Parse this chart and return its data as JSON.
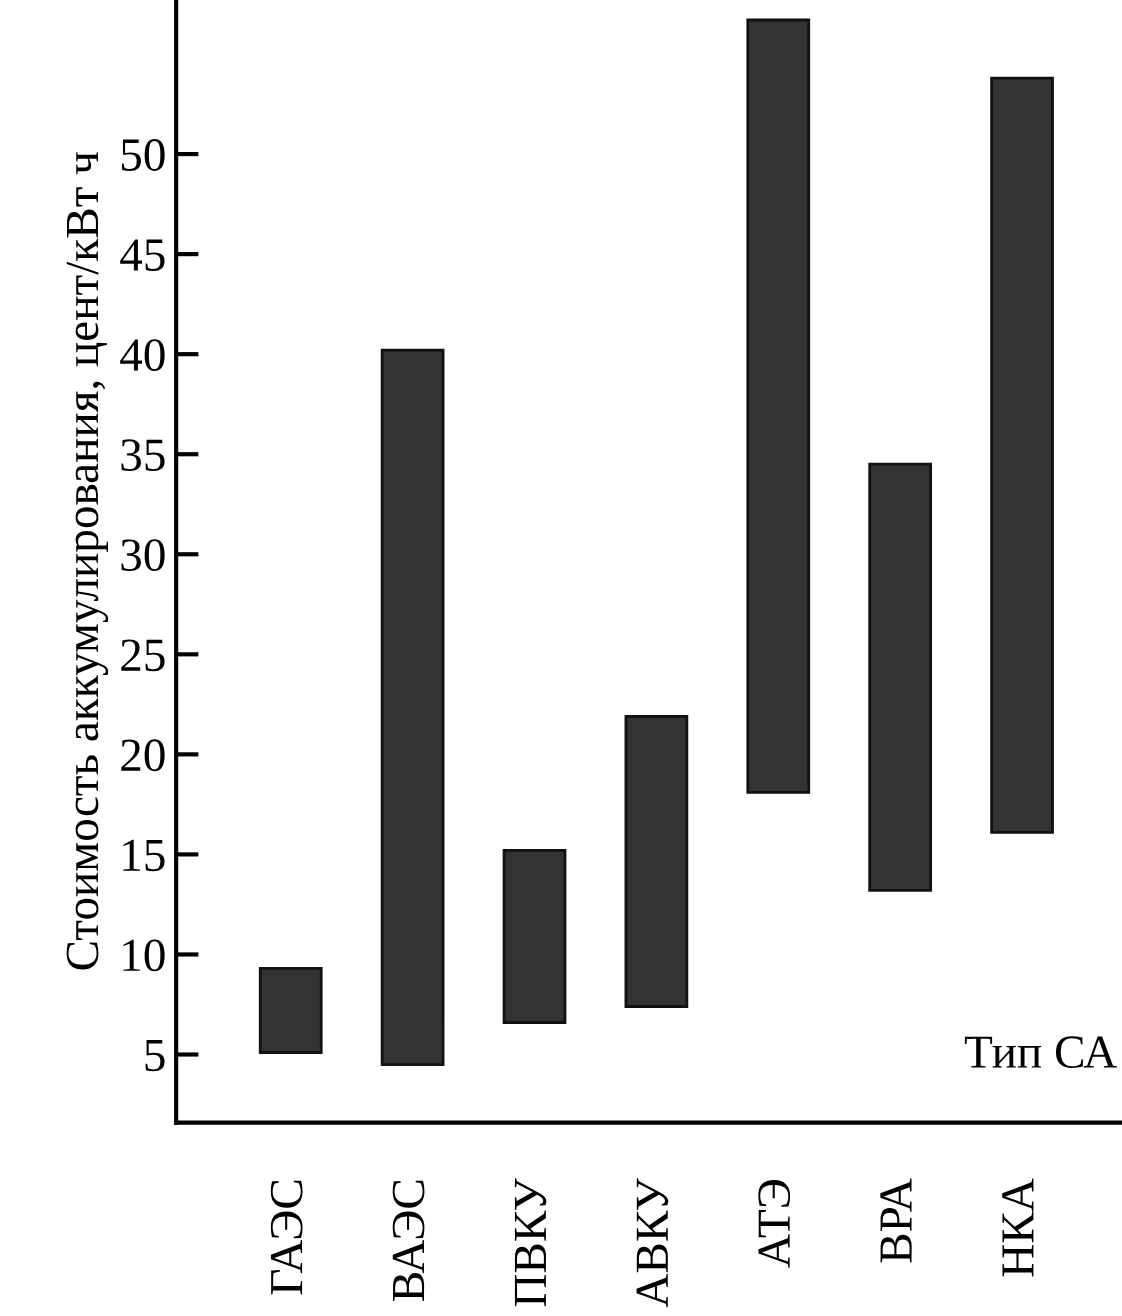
{
  "chart_data": {
    "type": "bar",
    "ylabel": "Стоимость аккумулирования, цент/кВт ч",
    "xlabel": "Тип СА",
    "categories": [
      "ГАЭС",
      "ВАЭС",
      "ПВКУ",
      "АВКУ",
      "АТЭ",
      "ВРА",
      "НКА"
    ],
    "base": [
      5.1,
      4.5,
      6.6,
      7.4,
      18.1,
      13.2,
      16.1
    ],
    "values": [
      4.2,
      35.7,
      8.6,
      14.5,
      38.6,
      21.3,
      37.7
    ],
    "color": "#333333",
    "ylim": [
      1.6,
      57.7
    ],
    "yticks": [
      5,
      10,
      15,
      20,
      25,
      30,
      35,
      40,
      45,
      50
    ],
    "grid": false,
    "legend": false
  }
}
